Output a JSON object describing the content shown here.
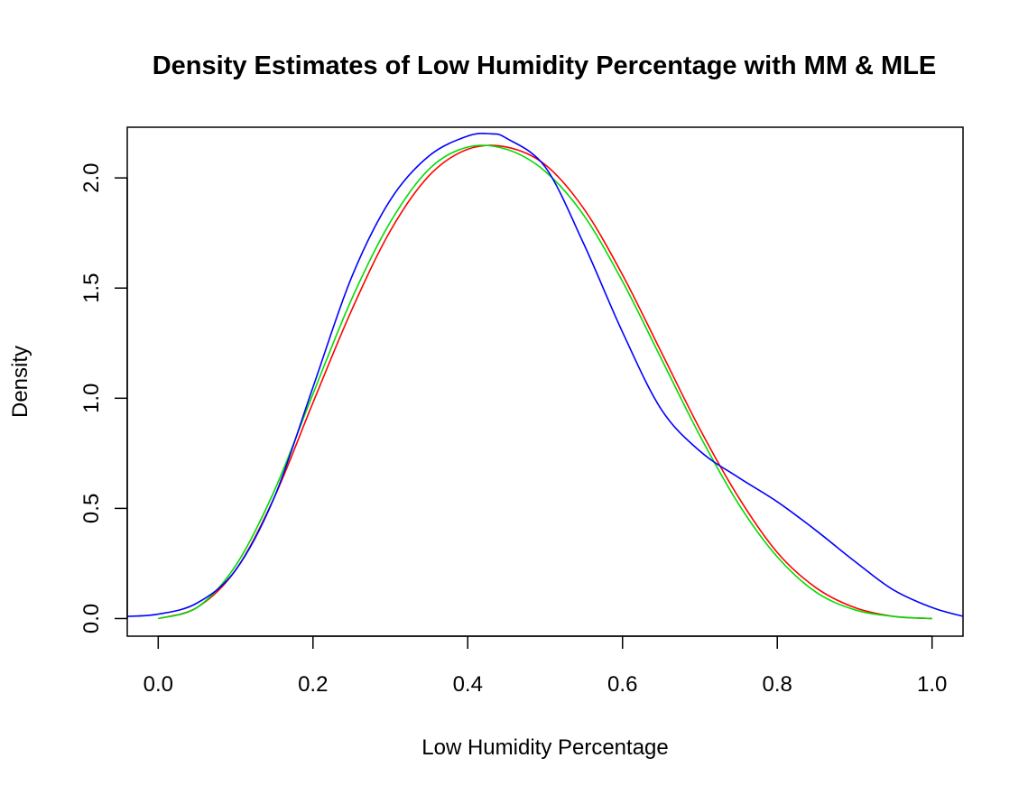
{
  "chart_data": {
    "type": "line",
    "title": "Density Estimates of Low Humidity Percentage with MM & MLE",
    "xlabel": "Low Humidity Percentage",
    "ylabel": "Density",
    "xlim": [
      -0.04,
      1.04
    ],
    "ylim": [
      -0.08,
      2.23
    ],
    "xticks": [
      0.0,
      0.2,
      0.4,
      0.6,
      0.8,
      1.0
    ],
    "xtick_labels": [
      "0.0",
      "0.2",
      "0.4",
      "0.6",
      "0.8",
      "1.0"
    ],
    "yticks": [
      0.0,
      0.5,
      1.0,
      1.5,
      2.0
    ],
    "ytick_labels": [
      "0.0",
      "0.5",
      "1.0",
      "1.5",
      "2.0"
    ],
    "grid": false,
    "legend": "none",
    "series": [
      {
        "color": "#ff0000",
        "x": [
          0.0,
          0.05,
          0.1,
          0.15,
          0.2,
          0.25,
          0.3,
          0.35,
          0.4,
          0.45,
          0.5,
          0.55,
          0.6,
          0.65,
          0.7,
          0.75,
          0.8,
          0.85,
          0.9,
          0.95,
          1.0
        ],
        "y": [
          0.0,
          0.05,
          0.22,
          0.55,
          0.98,
          1.4,
          1.76,
          2.01,
          2.13,
          2.14,
          2.06,
          1.86,
          1.56,
          1.21,
          0.86,
          0.55,
          0.3,
          0.14,
          0.05,
          0.01,
          0.0
        ]
      },
      {
        "color": "#00dd00",
        "x": [
          0.0,
          0.05,
          0.1,
          0.15,
          0.2,
          0.25,
          0.3,
          0.35,
          0.4,
          0.45,
          0.5,
          0.55,
          0.6,
          0.65,
          0.7,
          0.75,
          0.8,
          0.85,
          0.9,
          0.95,
          1.0
        ],
        "y": [
          0.0,
          0.05,
          0.24,
          0.58,
          1.02,
          1.45,
          1.8,
          2.04,
          2.14,
          2.13,
          2.03,
          1.83,
          1.53,
          1.18,
          0.83,
          0.52,
          0.28,
          0.12,
          0.04,
          0.01,
          0.0
        ]
      },
      {
        "color": "#0000ff",
        "x": [
          -0.04,
          0.0,
          0.05,
          0.1,
          0.15,
          0.2,
          0.25,
          0.3,
          0.35,
          0.4,
          0.43,
          0.45,
          0.5,
          0.55,
          0.6,
          0.65,
          0.7,
          0.75,
          0.8,
          0.85,
          0.9,
          0.95,
          1.0,
          1.04
        ],
        "y": [
          0.01,
          0.02,
          0.07,
          0.22,
          0.55,
          1.05,
          1.55,
          1.9,
          2.1,
          2.19,
          2.2,
          2.18,
          2.05,
          1.7,
          1.3,
          0.95,
          0.76,
          0.64,
          0.53,
          0.4,
          0.26,
          0.13,
          0.05,
          0.01
        ]
      }
    ]
  }
}
